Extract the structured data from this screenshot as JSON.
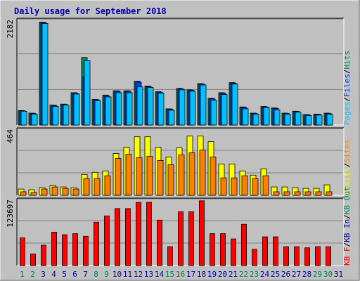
{
  "title": "Daily usage for September 2018",
  "colors": {
    "background": "#c0c0c0",
    "panel": "#c0c0c0",
    "grid": "#808080",
    "title": "#0000aa",
    "hits": "#00805c",
    "files": "#0040ff",
    "pages": "#00c0ff",
    "visits": "#ffff00",
    "sites": "#ff8000",
    "kbytes_in": "#0000aa",
    "kbytes_out": "#00805c",
    "kbytes": "#ff0000",
    "weekday_label": "#0000aa",
    "weekend_label": "#00805c"
  },
  "chart_data": [
    {
      "type": "bar",
      "panel": "top",
      "ymax_label": "2182",
      "ylim": [
        0,
        2182
      ],
      "right_labels": [
        {
          "text": "Pages",
          "color": "#00c0ff"
        },
        {
          "text": "/",
          "color": "#000000"
        },
        {
          "text": "Files",
          "color": "#0040ff"
        },
        {
          "text": "/",
          "color": "#000000"
        },
        {
          "text": "Hits",
          "color": "#00805c"
        }
      ],
      "categories": [
        "1",
        "2",
        "3",
        "4",
        "5",
        "6",
        "7",
        "8",
        "9",
        "10",
        "11",
        "12",
        "13",
        "14",
        "15",
        "16",
        "17",
        "18",
        "19",
        "20",
        "21",
        "22",
        "23",
        "24",
        "25",
        "26",
        "27",
        "28",
        "29",
        "30",
        "31"
      ],
      "series": [
        {
          "name": "Hits",
          "values": [
            305,
            250,
            2160,
            420,
            440,
            680,
            1420,
            540,
            630,
            720,
            720,
            920,
            820,
            700,
            340,
            770,
            740,
            870,
            560,
            680,
            890,
            380,
            250,
            390,
            360,
            250,
            290,
            220,
            230,
            250,
            0
          ]
        },
        {
          "name": "Files",
          "values": [
            300,
            245,
            2150,
            410,
            430,
            670,
            1010,
            530,
            610,
            710,
            710,
            900,
            800,
            690,
            330,
            760,
            730,
            860,
            550,
            670,
            880,
            370,
            245,
            380,
            350,
            245,
            285,
            215,
            225,
            245,
            0
          ]
        },
        {
          "name": "Pages",
          "values": [
            290,
            230,
            2130,
            390,
            420,
            650,
            1350,
            510,
            590,
            680,
            680,
            800,
            790,
            670,
            310,
            740,
            710,
            840,
            520,
            640,
            860,
            340,
            230,
            370,
            320,
            230,
            270,
            200,
            210,
            230,
            0
          ]
        }
      ]
    },
    {
      "type": "bar",
      "panel": "middle",
      "ymax_label": "464",
      "ylim": [
        0,
        464
      ],
      "right_labels": [
        {
          "text": "Visits",
          "color": "#ffff00"
        },
        {
          "text": "/",
          "color": "#000000"
        },
        {
          "text": "Sites",
          "color": "#ff8000"
        }
      ],
      "categories": [
        "1",
        "2",
        "3",
        "4",
        "5",
        "6",
        "7",
        "8",
        "9",
        "10",
        "11",
        "12",
        "13",
        "14",
        "15",
        "16",
        "17",
        "18",
        "19",
        "20",
        "21",
        "22",
        "23",
        "24",
        "25",
        "26",
        "27",
        "28",
        "29",
        "30",
        "31"
      ],
      "series": [
        {
          "name": "Visits",
          "values": [
            45,
            40,
            55,
            70,
            60,
            55,
            150,
            165,
            175,
            300,
            345,
            420,
            420,
            345,
            275,
            340,
            425,
            425,
            385,
            225,
            225,
            175,
            145,
            190,
            60,
            60,
            55,
            50,
            50,
            75,
            0
          ]
        },
        {
          "name": "Sites",
          "values": [
            25,
            20,
            45,
            60,
            50,
            45,
            120,
            120,
            140,
            265,
            295,
            270,
            280,
            250,
            220,
            290,
            305,
            325,
            275,
            125,
            125,
            140,
            120,
            140,
            25,
            25,
            25,
            25,
            25,
            25,
            0
          ]
        }
      ]
    },
    {
      "type": "bar",
      "panel": "bottom",
      "ymax_label": "123697",
      "ylim": [
        0,
        123697
      ],
      "right_labels": [
        {
          "text": "KB F",
          "color": "#ff0000"
        },
        {
          "text": "/",
          "color": "#000000"
        },
        {
          "text": "KB In",
          "color": "#0000aa"
        },
        {
          "text": "/",
          "color": "#000000"
        },
        {
          "text": "KB Out",
          "color": "#00805c"
        }
      ],
      "categories": [
        "1",
        "2",
        "3",
        "4",
        "5",
        "6",
        "7",
        "8",
        "9",
        "10",
        "11",
        "12",
        "13",
        "14",
        "15",
        "16",
        "17",
        "18",
        "19",
        "20",
        "21",
        "22",
        "23",
        "24",
        "25",
        "26",
        "27",
        "28",
        "29",
        "30",
        "31"
      ],
      "series": [
        {
          "name": "KB F",
          "values": [
            53000,
            22000,
            39000,
            64000,
            59000,
            61000,
            56000,
            83000,
            95000,
            109000,
            109000,
            121000,
            121000,
            87000,
            36000,
            103000,
            103000,
            124000,
            61000,
            61000,
            51000,
            79000,
            31000,
            55000,
            55000,
            36000,
            36000,
            34000,
            36000,
            36000,
            0
          ]
        }
      ]
    }
  ],
  "x_labels": [
    {
      "text": "1",
      "weekend": true
    },
    {
      "text": "2",
      "weekend": true
    },
    {
      "text": "3",
      "weekend": false
    },
    {
      "text": "4",
      "weekend": false
    },
    {
      "text": "5",
      "weekend": false
    },
    {
      "text": "6",
      "weekend": false
    },
    {
      "text": "7",
      "weekend": false
    },
    {
      "text": "8",
      "weekend": true
    },
    {
      "text": "9",
      "weekend": true
    },
    {
      "text": "10",
      "weekend": false
    },
    {
      "text": "11",
      "weekend": false
    },
    {
      "text": "12",
      "weekend": false
    },
    {
      "text": "13",
      "weekend": false
    },
    {
      "text": "14",
      "weekend": false
    },
    {
      "text": "15",
      "weekend": true
    },
    {
      "text": "16",
      "weekend": true
    },
    {
      "text": "17",
      "weekend": false
    },
    {
      "text": "18",
      "weekend": false
    },
    {
      "text": "19",
      "weekend": false
    },
    {
      "text": "20",
      "weekend": false
    },
    {
      "text": "21",
      "weekend": false
    },
    {
      "text": "22",
      "weekend": true
    },
    {
      "text": "23",
      "weekend": true
    },
    {
      "text": "24",
      "weekend": false
    },
    {
      "text": "25",
      "weekend": false
    },
    {
      "text": "26",
      "weekend": false
    },
    {
      "text": "27",
      "weekend": false
    },
    {
      "text": "28",
      "weekend": false
    },
    {
      "text": "29",
      "weekend": true
    },
    {
      "text": "30",
      "weekend": true
    },
    {
      "text": "31",
      "weekend": false
    }
  ]
}
